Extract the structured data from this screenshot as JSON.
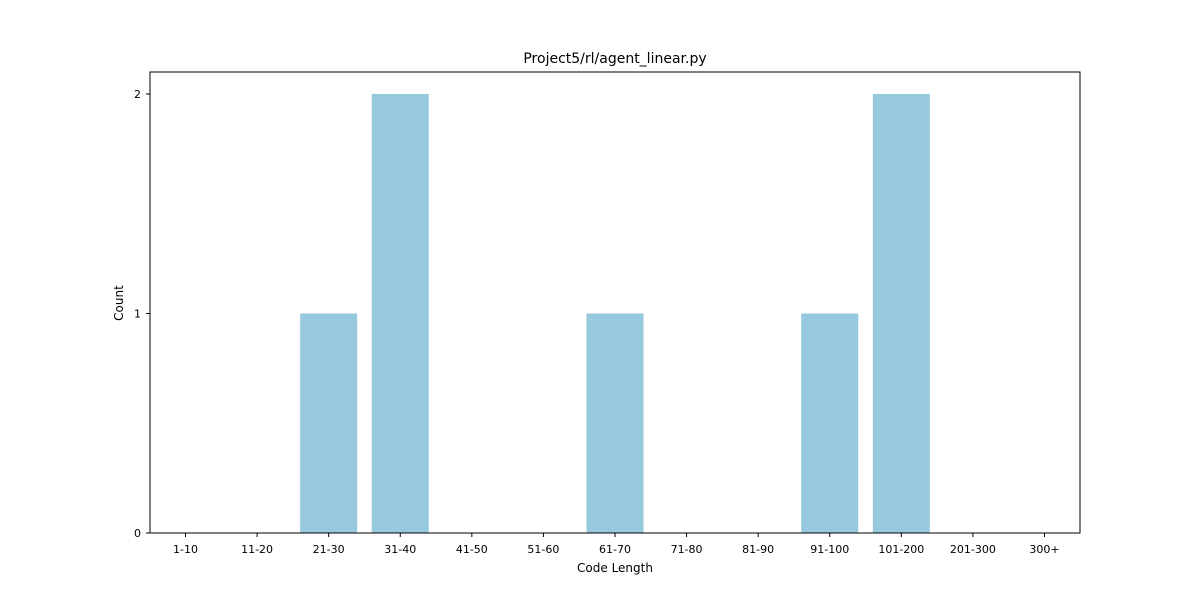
{
  "chart_data": {
    "type": "bar",
    "title": "Project5/rl/agent_linear.py",
    "xlabel": "Code Length",
    "ylabel": "Count",
    "categories": [
      "1-10",
      "11-20",
      "21-30",
      "31-40",
      "41-50",
      "51-60",
      "61-70",
      "71-80",
      "81-90",
      "91-100",
      "101-200",
      "201-300",
      "300+"
    ],
    "values": [
      0,
      0,
      1,
      2,
      0,
      0,
      1,
      0,
      0,
      1,
      2,
      0,
      0
    ],
    "ylim": [
      0,
      2.1
    ],
    "yticks": [
      0,
      1,
      2
    ],
    "bar_color": "#96c9de",
    "grid": false,
    "legend": "none"
  }
}
